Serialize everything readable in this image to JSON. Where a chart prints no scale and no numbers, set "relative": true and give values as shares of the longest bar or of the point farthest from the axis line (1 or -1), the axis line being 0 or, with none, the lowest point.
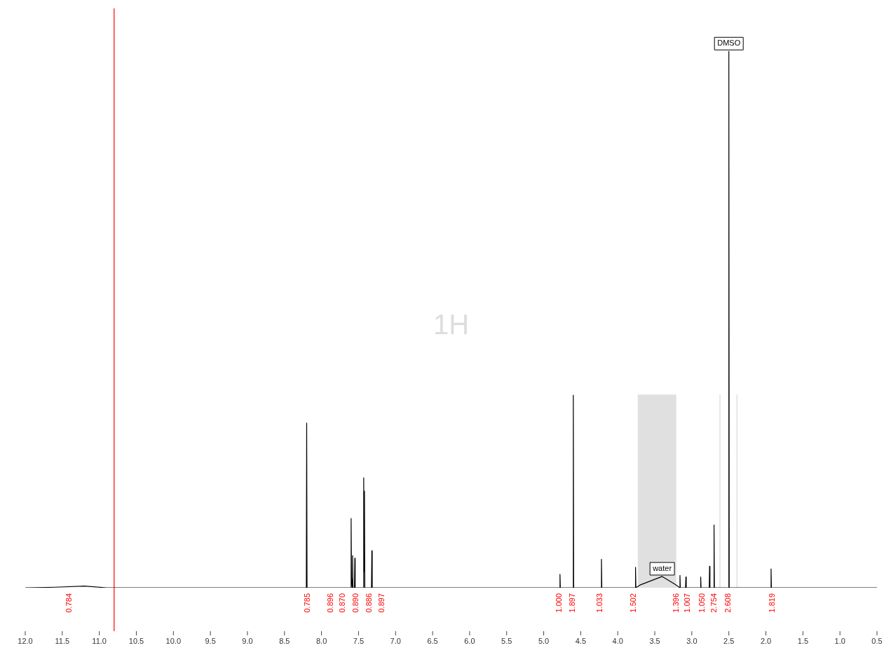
{
  "chart_data": {
    "type": "line",
    "relative": true,
    "grid": false,
    "legend": false,
    "marker": "none",
    "line_style": "solid",
    "x": [
      12,
      11.6,
      11.2,
      10.9,
      8.25,
      8.205,
      8.2,
      8.195,
      7.63,
      7.605,
      7.6,
      7.595,
      7.585,
      7.58,
      7.575,
      7.555,
      7.55,
      7.545,
      7.45,
      7.435,
      7.43,
      7.425,
      7.42,
      7.415,
      7.35,
      7.325,
      7.32,
      7.315,
      7.2,
      4.82,
      4.785,
      4.78,
      4.775,
      4.65,
      4.605,
      4.6,
      4.595,
      4.3,
      4.225,
      4.22,
      4.215,
      3.8,
      3.765,
      3.76,
      3.755,
      3.7,
      3.4,
      3.22,
      3.165,
      3.16,
      3.155,
      3.085,
      3.08,
      3.075,
      2.95,
      2.885,
      2.88,
      2.875,
      2.78,
      2.765,
      2.76,
      2.755,
      2.705,
      2.7,
      2.695,
      2.6,
      2.505,
      2.5,
      2.495,
      2.0,
      1.935,
      1.93,
      1.925,
      1.8,
      0.5
    ],
    "series": [
      {
        "color": "#000000",
        "values": [
          0,
          0.001,
          0.003,
          0,
          0,
          0,
          0.307,
          0,
          0,
          0,
          0.129,
          0.02,
          0,
          0.06,
          0,
          0,
          0.055,
          0,
          0,
          0,
          0.205,
          0.03,
          0.18,
          0,
          0,
          0,
          0.069,
          0,
          0,
          0,
          0,
          0.025,
          0,
          0,
          0,
          0.359,
          0,
          0,
          0,
          0.053,
          0,
          0,
          0,
          0.038,
          0,
          0.005,
          0.021,
          0.006,
          0,
          0.023,
          0,
          0,
          0.02,
          0,
          0,
          0,
          0.02,
          0,
          0,
          0,
          0.04,
          0,
          0,
          0.117,
          0,
          0,
          0,
          1,
          0,
          0,
          0,
          0.035,
          0,
          0,
          0
        ]
      }
    ],
    "xlim": [
      12,
      0.5
    ],
    "xticks": [
      {
        "value": 12,
        "label": "12.0"
      },
      {
        "value": 11.5,
        "label": "11.5"
      },
      {
        "value": 11,
        "label": "11.0"
      },
      {
        "value": 10.5,
        "label": "10.5"
      },
      {
        "value": 10,
        "label": "10.0"
      },
      {
        "value": 9.5,
        "label": "9.5"
      },
      {
        "value": 9,
        "label": "9.0"
      },
      {
        "value": 8.5,
        "label": "8.5"
      },
      {
        "value": 8,
        "label": "8.0"
      },
      {
        "value": 7.5,
        "label": "7.5"
      },
      {
        "value": 7,
        "label": "7.0"
      },
      {
        "value": 6.5,
        "label": "6.5"
      },
      {
        "value": 6,
        "label": "6.0"
      },
      {
        "value": 5.5,
        "label": "5.5"
      },
      {
        "value": 5,
        "label": "5.0"
      },
      {
        "value": 4.5,
        "label": "4.5"
      },
      {
        "value": 4,
        "label": "4.0"
      },
      {
        "value": 3.5,
        "label": "3.5"
      },
      {
        "value": 3,
        "label": "3.0"
      },
      {
        "value": 2.5,
        "label": "2.5"
      },
      {
        "value": 2,
        "label": "2.0"
      },
      {
        "value": 1.5,
        "label": "1.5"
      },
      {
        "value": 1,
        "label": "1.0"
      },
      {
        "value": 0.5,
        "label": "0.5"
      }
    ],
    "ref_lines": [
      {
        "axis": "x",
        "value": 10.8,
        "color": "#ff0000"
      },
      {
        "axis": "x",
        "value": 2.62,
        "color": "#d9d9d9"
      },
      {
        "axis": "x",
        "value": 2.39,
        "color": "#d9d9d9"
      }
    ],
    "bands": [
      {
        "axis": "x",
        "from": 3.73,
        "to": 3.21,
        "color": "#e0e0e0"
      }
    ],
    "annotations": [
      "1H",
      {
        "text": "DMSO",
        "x": 2.5,
        "y": 1
      },
      {
        "text": "water",
        "x": 3.4,
        "y": 0.021
      },
      {
        "text": "0.784",
        "x": 11.4,
        "y": 0
      },
      {
        "text": "0.785",
        "x": 8.19,
        "y": 0
      },
      {
        "text": "0.896",
        "x": 7.87,
        "y": 0
      },
      {
        "text": "0.870",
        "x": 7.71,
        "y": 0
      },
      {
        "text": "0.890",
        "x": 7.53,
        "y": 0
      },
      {
        "text": "0.886",
        "x": 7.35,
        "y": 0
      },
      {
        "text": "0.897",
        "x": 7.18,
        "y": 0
      },
      {
        "text": "1.000",
        "x": 4.79,
        "y": 0
      },
      {
        "text": "1.897",
        "x": 4.61,
        "y": 0
      },
      {
        "text": "1.033",
        "x": 4.24,
        "y": 0
      },
      {
        "text": "1.502",
        "x": 3.78,
        "y": 0
      },
      {
        "text": "1.396",
        "x": 3.21,
        "y": 0
      },
      {
        "text": "1.007",
        "x": 3.06,
        "y": 0
      },
      {
        "text": "1.050",
        "x": 2.86,
        "y": 0
      },
      {
        "text": "2.754",
        "x": 2.7,
        "y": 0
      },
      {
        "text": "2.608",
        "x": 2.51,
        "y": 0
      },
      {
        "text": "1.819",
        "x": 1.91,
        "y": 0
      }
    ]
  }
}
